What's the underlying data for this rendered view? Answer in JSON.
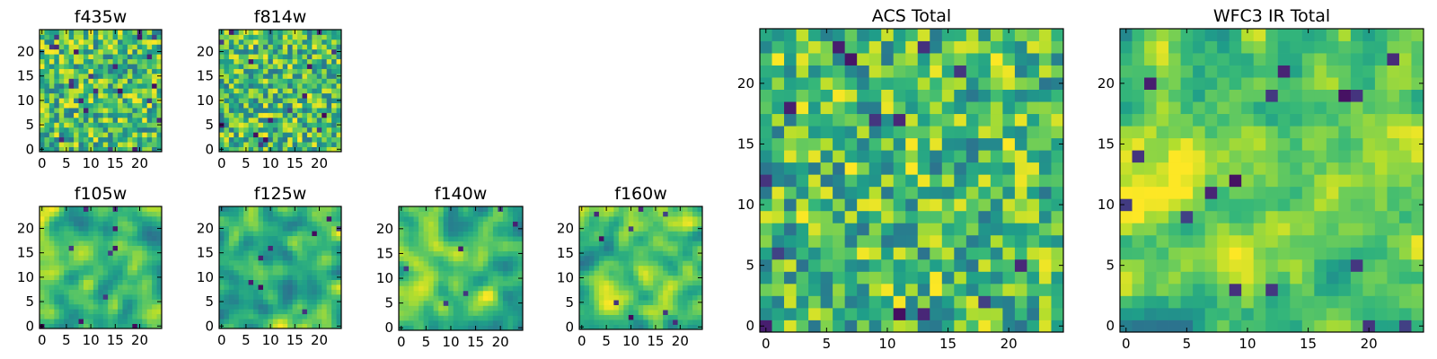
{
  "figure": {
    "colormap": "viridis",
    "frame_color": "#000000",
    "background": "#ffffff"
  },
  "chart_data": [
    {
      "type": "heatmap",
      "title": "f435w",
      "grid_size": 25,
      "xlim": [
        0,
        24
      ],
      "ylim": [
        0,
        24
      ],
      "x_ticks": [
        "0",
        "5",
        "10",
        "15",
        "20"
      ],
      "y_ticks": [
        "0",
        "5",
        "10",
        "15",
        "20"
      ],
      "pattern": {
        "seed": 11,
        "smooth": 0,
        "dark_spots": 22
      },
      "grid": false,
      "legend": "none"
    },
    {
      "type": "heatmap",
      "title": "f814w",
      "grid_size": 25,
      "xlim": [
        0,
        24
      ],
      "ylim": [
        0,
        24
      ],
      "x_ticks": [
        "0",
        "5",
        "10",
        "15",
        "20"
      ],
      "y_ticks": [
        "0",
        "5",
        "10",
        "15",
        "20"
      ],
      "pattern": {
        "seed": 23,
        "smooth": 0,
        "dark_spots": 16
      },
      "grid": false,
      "legend": "none"
    },
    {
      "type": "heatmap",
      "title": "f105w",
      "grid_size": 25,
      "xlim": [
        0,
        24
      ],
      "ylim": [
        0,
        24
      ],
      "x_ticks": [
        "0",
        "5",
        "10",
        "15",
        "20"
      ],
      "y_ticks": [
        "0",
        "5",
        "10",
        "15",
        "20"
      ],
      "pattern": {
        "seed": 37,
        "smooth": 2,
        "dark_spots": 10
      },
      "grid": false,
      "legend": "none"
    },
    {
      "type": "heatmap",
      "title": "f125w",
      "grid_size": 25,
      "xlim": [
        0,
        24
      ],
      "ylim": [
        0,
        24
      ],
      "x_ticks": [
        "0",
        "5",
        "10",
        "15",
        "20"
      ],
      "y_ticks": [
        "0",
        "5",
        "10",
        "15",
        "20"
      ],
      "pattern": {
        "seed": 41,
        "smooth": 2,
        "dark_spots": 8
      },
      "grid": false,
      "legend": "none"
    },
    {
      "type": "heatmap",
      "title": "f140w",
      "grid_size": 25,
      "xlim": [
        0,
        24
      ],
      "ylim": [
        0,
        24
      ],
      "x_ticks": [
        "0",
        "5",
        "10",
        "15",
        "20"
      ],
      "y_ticks": [
        "0",
        "5",
        "10",
        "15",
        "20"
      ],
      "pattern": {
        "seed": 53,
        "smooth": 2,
        "dark_spots": 6
      },
      "grid": false,
      "legend": "none"
    },
    {
      "type": "heatmap",
      "title": "f160w",
      "grid_size": 25,
      "xlim": [
        0,
        24
      ],
      "ylim": [
        0,
        24
      ],
      "x_ticks": [
        "0",
        "5",
        "10",
        "15",
        "20"
      ],
      "y_ticks": [
        "0",
        "5",
        "10",
        "15",
        "20"
      ],
      "pattern": {
        "seed": 67,
        "smooth": 2,
        "dark_spots": 9
      },
      "grid": false,
      "legend": "none"
    },
    {
      "type": "heatmap",
      "title": "ACS Total",
      "grid_size": 25,
      "xlim": [
        0,
        24
      ],
      "ylim": [
        0,
        24
      ],
      "x_ticks": [
        "0",
        "5",
        "10",
        "15",
        "20"
      ],
      "y_ticks": [
        "0",
        "5",
        "10",
        "15",
        "20"
      ],
      "pattern": {
        "seed": 79,
        "smooth": 0,
        "dark_spots": 14
      },
      "grid": false,
      "legend": "none"
    },
    {
      "type": "heatmap",
      "title": "WFC3 IR Total",
      "grid_size": 25,
      "xlim": [
        0,
        24
      ],
      "ylim": [
        0,
        24
      ],
      "x_ticks": [
        "0",
        "5",
        "10",
        "15",
        "20"
      ],
      "y_ticks": [
        "0",
        "5",
        "10",
        "15",
        "20"
      ],
      "pattern": {
        "seed": 97,
        "smooth": 1,
        "dark_spots": 16,
        "bright_blob": true
      },
      "grid": false,
      "legend": "none"
    }
  ]
}
